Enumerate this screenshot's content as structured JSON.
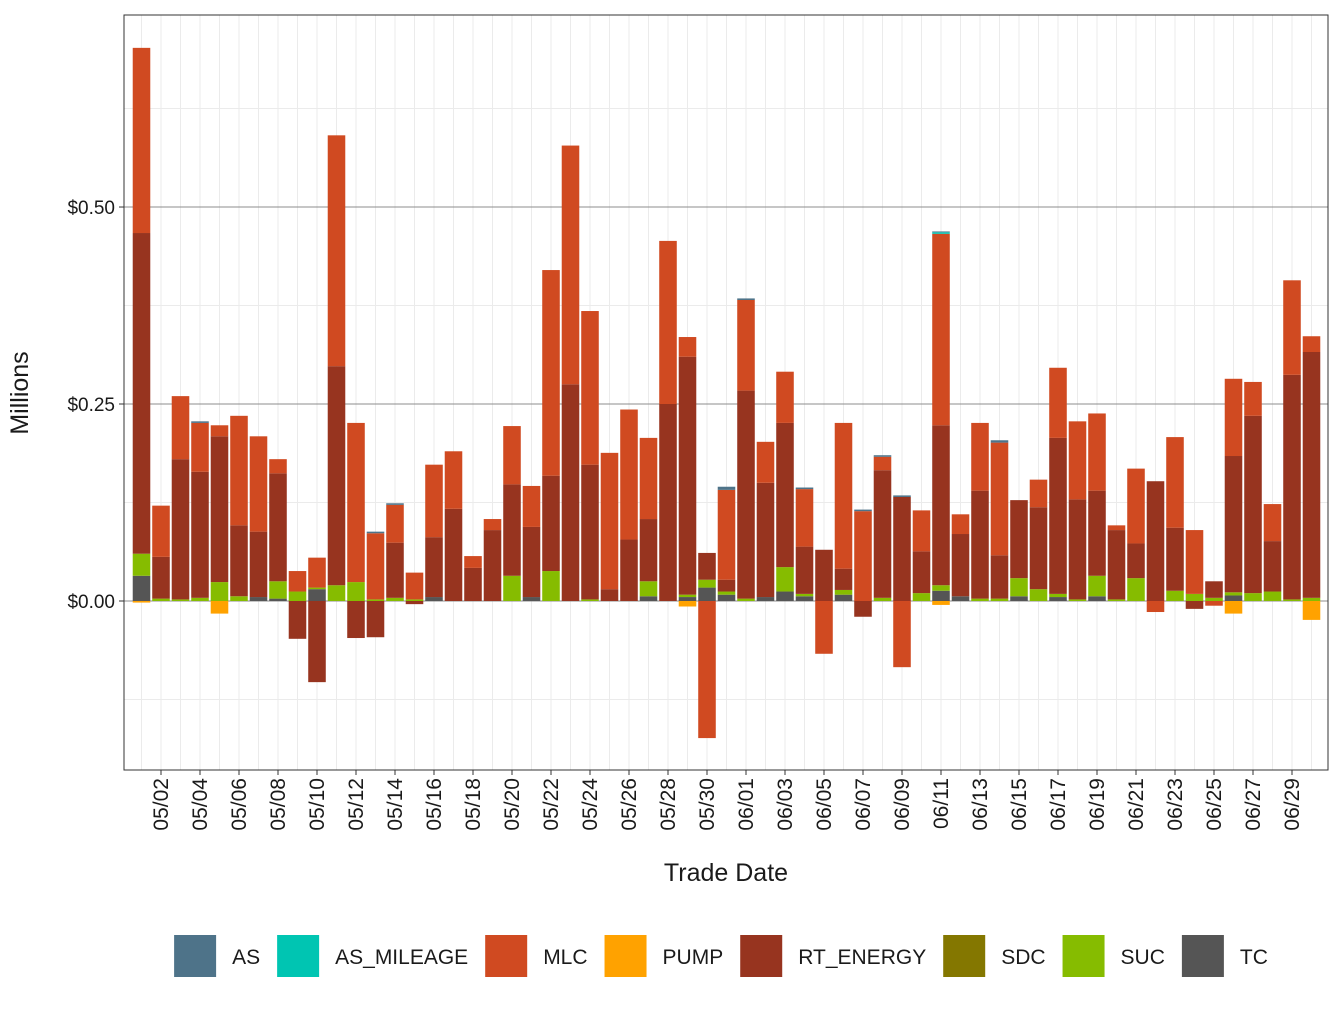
{
  "chart_data": {
    "type": "bar",
    "stacked": true,
    "x_label": "Trade Date",
    "y_label": "Millions",
    "categories": [
      null,
      "05/02",
      null,
      "05/04",
      null,
      "05/06",
      null,
      "05/08",
      null,
      "05/10",
      null,
      "05/12",
      null,
      "05/14",
      null,
      "05/16",
      null,
      "05/18",
      null,
      "05/20",
      null,
      "05/22",
      null,
      "05/24",
      null,
      "05/26",
      null,
      "05/28",
      null,
      "05/30",
      null,
      "06/01",
      null,
      "06/03",
      null,
      "06/05",
      null,
      "06/07",
      null,
      "06/09",
      null,
      "06/11",
      null,
      "06/13",
      null,
      "06/15",
      null,
      "06/17",
      null,
      "06/19",
      null,
      "06/21",
      null,
      "06/23",
      null,
      "06/25",
      null,
      "06/27",
      null,
      "06/29",
      null
    ],
    "ylim": [
      -0.2145,
      0.7437
    ],
    "yticks": [
      {
        "value": 0,
        "label": "$0.00"
      },
      {
        "value": 0.25,
        "label": "$0.25"
      },
      {
        "value": 0.5,
        "label": "$0.50"
      }
    ],
    "grid": true,
    "legend": "bottom",
    "series": [
      {
        "name": "AS",
        "color": "#4e7389",
        "values": [
          0,
          0,
          0,
          0.002,
          0,
          0,
          0,
          0,
          0,
          0,
          0,
          0,
          0.002,
          0.002,
          0,
          0,
          0,
          0,
          0,
          0,
          0,
          0,
          0,
          0,
          0,
          0,
          0,
          0,
          0,
          0,
          0.004,
          0.002,
          0,
          0,
          0.002,
          0,
          0,
          0.002,
          0.002,
          0.002,
          0,
          0.001,
          0,
          0,
          0.003,
          0,
          0,
          0,
          0,
          0,
          0,
          0,
          0,
          0,
          0,
          0,
          0,
          0,
          0,
          0,
          0
        ]
      },
      {
        "name": "AS_MILEAGE",
        "color": "#00c5b2",
        "values": [
          0,
          0,
          0,
          0,
          0,
          0,
          0,
          0,
          0,
          0,
          0,
          0,
          0,
          0,
          0,
          0,
          0,
          0,
          0,
          0,
          0,
          0,
          0,
          0,
          0,
          0,
          0,
          0,
          0,
          0,
          0,
          0,
          0,
          0,
          0,
          0,
          0,
          0,
          0,
          0,
          0,
          0.002,
          0,
          0,
          0,
          0,
          0,
          0,
          0,
          0,
          0,
          0,
          0,
          0,
          0,
          0,
          0,
          0,
          0,
          0,
          0
        ]
      },
      {
        "name": "MLC",
        "color": "#d04a21",
        "values": [
          0.235,
          0.065,
          0.08,
          0.062,
          0.014,
          0.139,
          0.121,
          0.018,
          0.026,
          0.038,
          0.293,
          0.202,
          0.084,
          0.048,
          0.034,
          0.092,
          0.073,
          0.015,
          0.014,
          0.074,
          0.052,
          0.261,
          0.303,
          0.195,
          0.173,
          0.165,
          0.103,
          0.207,
          0.025,
          -0.174,
          0.114,
          0.115,
          0.052,
          0.065,
          0.073,
          -0.067,
          0.185,
          0.114,
          0.017,
          -0.084,
          0.052,
          0.243,
          0.025,
          0.086,
          0.143,
          0,
          0.035,
          0.089,
          0.099,
          0.098,
          0.006,
          0.095,
          -0.014,
          0.115,
          0.081,
          -0.006,
          0.098,
          0.043,
          0.047,
          0.12,
          0.02
        ]
      },
      {
        "name": "PUMP",
        "color": "#ffa200",
        "values": [
          -0.002,
          0,
          0,
          0,
          -0.016,
          0,
          0,
          0,
          0,
          0,
          0,
          0,
          0,
          0,
          0,
          0,
          0,
          0,
          0,
          0,
          0,
          0,
          0,
          0,
          0,
          0,
          0,
          0,
          -0.007,
          0,
          0,
          0,
          0,
          0,
          0,
          0,
          0,
          0,
          0,
          0,
          0,
          -0.005,
          0,
          0,
          0,
          0,
          0,
          0,
          0,
          0,
          0,
          0,
          0,
          0,
          0,
          0,
          -0.016,
          0,
          0,
          0,
          -0.024
        ]
      },
      {
        "name": "RT_ENERGY",
        "color": "#97341f",
        "values": [
          0.407,
          0.053,
          0.178,
          0.16,
          0.185,
          0.09,
          0.083,
          0.137,
          -0.048,
          -0.103,
          0.278,
          -0.047,
          -0.046,
          0.07,
          -0.004,
          0.076,
          0.117,
          0.042,
          0.09,
          0.116,
          0.089,
          0.121,
          0.275,
          0.171,
          0.015,
          0.078,
          0.079,
          0.25,
          0.302,
          0.034,
          0.015,
          0.264,
          0.145,
          0.183,
          0.06,
          0.065,
          0.027,
          -0.02,
          0.162,
          0.132,
          0.053,
          0.203,
          0.079,
          0.137,
          0.055,
          0.099,
          0.104,
          0.198,
          0.127,
          0.108,
          0.088,
          0.044,
          0.152,
          0.08,
          -0.01,
          0.021,
          0.173,
          0.225,
          0.064,
          0.285,
          0.312
        ]
      },
      {
        "name": "SDC",
        "color": "#847700",
        "values": [
          0,
          0,
          0,
          0,
          0,
          0,
          0,
          0,
          0,
          0,
          0,
          0,
          0,
          0,
          0,
          0,
          0,
          0,
          0,
          0,
          0,
          0,
          0,
          0,
          0,
          0,
          0,
          0,
          0,
          0,
          0,
          0,
          0,
          0,
          0,
          0,
          0,
          0,
          0,
          0,
          0,
          0,
          0,
          0,
          0,
          0,
          0,
          0,
          0,
          0,
          0,
          0,
          0,
          0,
          0,
          0,
          0,
          0,
          0,
          0,
          0
        ]
      },
      {
        "name": "SUC",
        "color": "#86bc00",
        "values": [
          0.028,
          0.003,
          0.002,
          0.004,
          0.024,
          0.006,
          0,
          0.022,
          0.012,
          0.002,
          0.02,
          0.024,
          0.002,
          0.004,
          0.002,
          0,
          0,
          0,
          0,
          0.032,
          0,
          0.038,
          0,
          0.002,
          0,
          0,
          0.019,
          0,
          0.003,
          0.01,
          0.004,
          0.003,
          0,
          0.031,
          0.003,
          0,
          0.006,
          0,
          0.004,
          0,
          0.01,
          0.007,
          0,
          0.003,
          0.003,
          0.023,
          0.015,
          0.004,
          0.002,
          0.026,
          0.002,
          0.029,
          0,
          0.013,
          0.009,
          0.004,
          0.004,
          0.01,
          0.012,
          0.002,
          0.004
        ]
      },
      {
        "name": "TC",
        "color": "#555555",
        "values": [
          0.032,
          0,
          0,
          0,
          0,
          0,
          0.005,
          0.003,
          0,
          0.015,
          0,
          0,
          0,
          0,
          0,
          0.005,
          0,
          0,
          0,
          0,
          0.005,
          0,
          0,
          0,
          0,
          0,
          0.006,
          0,
          0.005,
          0.017,
          0.008,
          0,
          0.005,
          0.012,
          0.006,
          0,
          0.008,
          0,
          0,
          0,
          0,
          0.013,
          0.006,
          0,
          0,
          0.006,
          0,
          0.005,
          0,
          0.006,
          0,
          0,
          0,
          0,
          0,
          0,
          0.007,
          0,
          0,
          0,
          0
        ]
      }
    ]
  }
}
